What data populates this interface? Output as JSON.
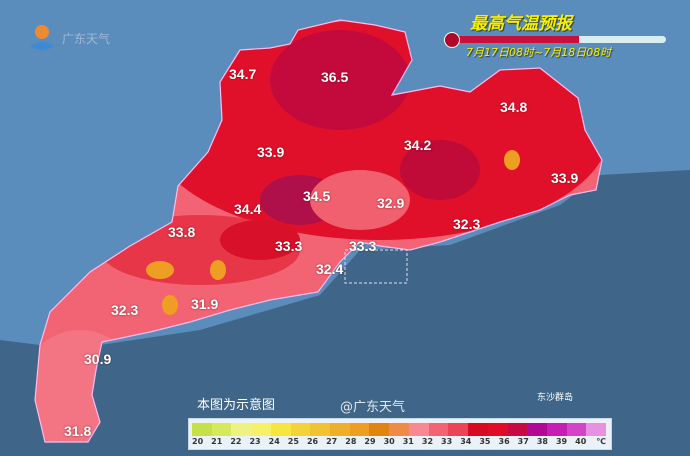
{
  "header": {
    "title": "最高气温预报",
    "date_range": "7月17日08时~7月18日08时",
    "progress": 0.6
  },
  "logo": {
    "text": "广东天气"
  },
  "note": "本图为示意图",
  "island_label": "东沙群岛",
  "watermark": "@广东天气",
  "colors": {
    "sea": "#3f6688",
    "land": "#5b8dbc",
    "hot": "#e0102a"
  },
  "city_values": [
    {
      "value": "34.7"
    },
    {
      "value": "36.5"
    },
    {
      "value": "34.8"
    },
    {
      "value": "33.9"
    },
    {
      "value": "34.2"
    },
    {
      "value": "33.9"
    },
    {
      "value": "34.5"
    },
    {
      "value": "34.4"
    },
    {
      "value": "32.9"
    },
    {
      "value": "32.3"
    },
    {
      "value": "33.8"
    },
    {
      "value": "33.3"
    },
    {
      "value": "33.3"
    },
    {
      "value": "32.4"
    },
    {
      "value": "32.3"
    },
    {
      "value": "31.9"
    },
    {
      "value": "30.9"
    },
    {
      "value": "31.8"
    }
  ],
  "legend": {
    "unit": "℃",
    "ticks": [
      "20",
      "21",
      "22",
      "23",
      "24",
      "25",
      "26",
      "27",
      "28",
      "29",
      "30",
      "31",
      "32",
      "33",
      "34",
      "35",
      "36",
      "37",
      "38",
      "39",
      "40"
    ],
    "colors": [
      "#c6e04a",
      "#d6e85c",
      "#eef282",
      "#f6f06a",
      "#f8e640",
      "#f2d43a",
      "#f0c234",
      "#eeb02c",
      "#ee9e22",
      "#e08412",
      "#f08a48",
      "#f88894",
      "#f26474",
      "#ea4456",
      "#d80a22",
      "#e20a26",
      "#c80a44",
      "#b00a92",
      "#c41eb2",
      "#d444c8",
      "#e890e2"
    ]
  }
}
